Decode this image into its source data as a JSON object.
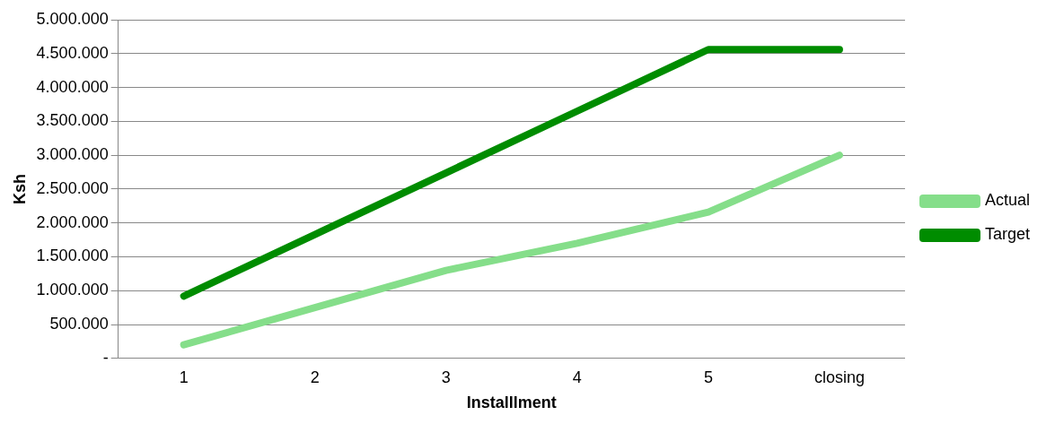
{
  "chart_data": {
    "type": "line",
    "xlabel": "Installlment",
    "ylabel": "Ksh",
    "categories": [
      "1",
      "2",
      "3",
      "4",
      "5",
      "closing"
    ],
    "series": [
      {
        "name": "Actual",
        "color": "#85de8a",
        "values": [
          200000,
          750000,
          1300000,
          1700000,
          2160000,
          3000000
        ]
      },
      {
        "name": "Target",
        "color": "#008c00",
        "values": [
          920000,
          1830000,
          2740000,
          3650000,
          4560000,
          4560000
        ]
      }
    ],
    "ylim": [
      0,
      5000000
    ],
    "yticks": [
      {
        "value": 0,
        "label": "-"
      },
      {
        "value": 500000,
        "label": "500.000"
      },
      {
        "value": 1000000,
        "label": "1.000.000"
      },
      {
        "value": 1500000,
        "label": "1.500.000"
      },
      {
        "value": 2000000,
        "label": "2.000.000"
      },
      {
        "value": 2500000,
        "label": "2.500.000"
      },
      {
        "value": 3000000,
        "label": "3.000.000"
      },
      {
        "value": 3500000,
        "label": "3.500.000"
      },
      {
        "value": 4000000,
        "label": "4.000.000"
      },
      {
        "value": 4500000,
        "label": "4.500.000"
      },
      {
        "value": 5000000,
        "label": "5.000.000"
      }
    ],
    "grid": "y",
    "legend": "right",
    "marker": "none",
    "line_style": "solid"
  }
}
